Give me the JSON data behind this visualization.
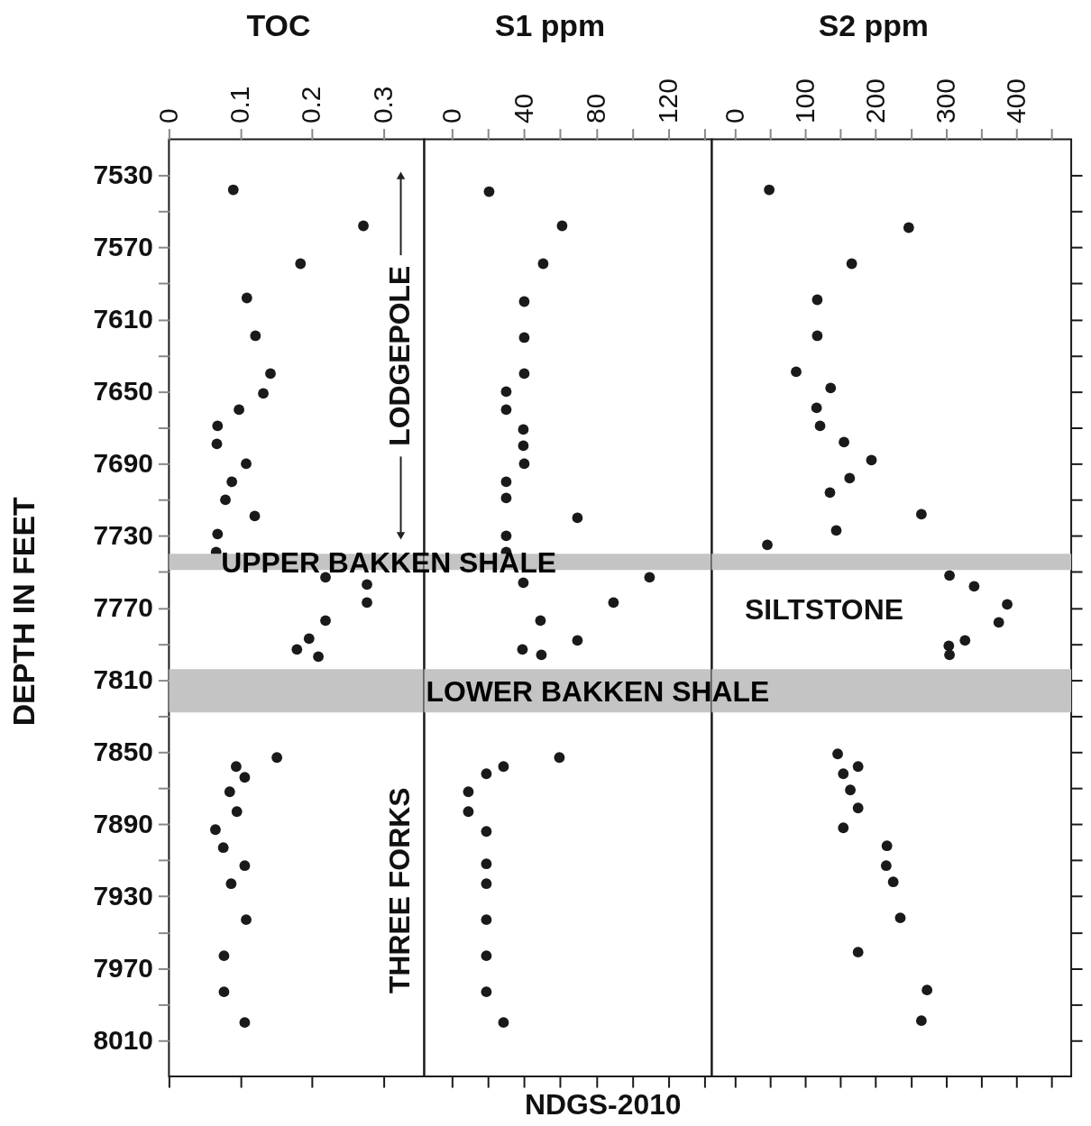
{
  "chart_data": [
    {
      "type": "scatter",
      "xlabel": "TOC",
      "ylabel": "DEPTH IN FEET",
      "marker": "circle",
      "grid": false,
      "legend": false,
      "xlim": [
        0,
        0.357
      ],
      "xticks": [
        0,
        0.1,
        0.2,
        0.3
      ],
      "ylim": [
        8030,
        7510
      ],
      "yticks": [
        7530,
        {
          "value": 7550,
          "label": null
        },
        7570,
        {
          "value": 7590,
          "label": null
        },
        7610,
        {
          "value": 7630,
          "label": null
        },
        7650,
        {
          "value": 7670,
          "label": null
        },
        7690,
        {
          "value": 7710,
          "label": null
        },
        7730,
        {
          "value": 7750,
          "label": null
        },
        7770,
        {
          "value": 7790,
          "label": null
        },
        7810,
        {
          "value": 7830,
          "label": null
        },
        7850,
        {
          "value": 7870,
          "label": null
        },
        7890,
        {
          "value": 7910,
          "label": null
        },
        7930,
        {
          "value": 7950,
          "label": null
        },
        7970,
        {
          "value": 7990,
          "label": null
        },
        8010
      ],
      "series": [
        {
          "color": "#1a1a1a",
          "x": [
            0.09,
            0.272,
            0.184,
            0.109,
            0.121,
            0.142,
            0.132,
            0.098,
            0.068,
            0.067,
            0.108,
            0.088,
            0.079,
            0.12,
            0.068,
            0.066,
            0.219,
            0.277,
            0.277,
            0.219,
            0.196,
            0.179,
            0.209,
            0.151,
            0.094,
            0.106,
            0.085,
            0.095,
            0.065,
            0.076,
            0.106,
            0.087,
            0.108,
            0.077,
            0.077,
            0.106
          ],
          "values": [
            7538,
            7558,
            7579,
            7598,
            7619,
            7640,
            7651,
            7660,
            7669,
            7679,
            7690,
            7700,
            7710,
            7719,
            7729,
            7739,
            7753,
            7757,
            7767,
            7777,
            7787,
            7793,
            7797,
            7853,
            7858,
            7864,
            7872,
            7883,
            7893,
            7903,
            7913,
            7923,
            7943,
            7963,
            7983,
            8000
          ]
        }
      ],
      "bands": [
        {
          "axis": "y",
          "from": 7740,
          "to": 7749,
          "label": "UPPER BAKKEN SHALE",
          "color": "#c4c4c4"
        },
        {
          "axis": "y",
          "from": 7804,
          "to": 7828,
          "color": "#c4c4c4"
        }
      ],
      "annotations": [
        "LODGEPOLE",
        "THREE FORKS"
      ]
    },
    {
      "type": "scatter",
      "xlabel": "S1 ppm",
      "marker": "circle",
      "grid": false,
      "legend": false,
      "tick_labels": "x",
      "xlim": [
        -15.5,
        144
      ],
      "xticks": [
        0,
        {
          "value": 20,
          "label": null
        },
        40,
        {
          "value": 60,
          "label": null
        },
        80,
        {
          "value": 100,
          "label": null
        },
        120,
        {
          "value": 140,
          "label": null
        }
      ],
      "ylim": [
        8030,
        7510
      ],
      "series": [
        {
          "color": "#1a1a1a",
          "x": [
            20.5,
            61,
            50.5,
            40,
            40,
            40,
            30,
            30,
            39.5,
            39.5,
            40,
            30,
            30,
            69.5,
            30,
            30,
            109.5,
            39.5,
            89.5,
            49,
            69.5,
            39,
            49.5,
            59.5,
            28.5,
            19,
            9,
            9,
            19,
            19,
            19,
            19,
            19,
            19,
            28.5
          ],
          "values": [
            7539,
            7558,
            7579,
            7600,
            7620,
            7640,
            7650,
            7660,
            7671,
            7680,
            7690,
            7700,
            7709,
            7720,
            7730,
            7739,
            7753,
            7756,
            7767,
            7777,
            7788,
            7793,
            7796,
            7853,
            7858,
            7862,
            7872,
            7883,
            7894,
            7912,
            7923,
            7943,
            7963,
            7983,
            8000
          ]
        }
      ],
      "bands": [
        {
          "axis": "y",
          "from": 7740,
          "to": 7749,
          "color": "#c4c4c4"
        },
        {
          "axis": "y",
          "from": 7804,
          "to": 7828,
          "label": "LOWER BAKKEN SHALE",
          "color": "#c4c4c4"
        }
      ],
      "annotations": [
        "NDGS-2010"
      ]
    },
    {
      "type": "scatter",
      "xlabel": "S2 ppm",
      "marker": "circle",
      "grid": false,
      "legend": false,
      "tick_labels": "x",
      "xlim": [
        -33,
        478
      ],
      "xticks": [
        0,
        {
          "value": 50,
          "label": null
        },
        100,
        {
          "value": 150,
          "label": null
        },
        200,
        {
          "value": 250,
          "label": null
        },
        300,
        {
          "value": 350,
          "label": null
        },
        400,
        {
          "value": 450,
          "label": null
        }
      ],
      "ylim": [
        8030,
        7510
      ],
      "series": [
        {
          "color": "#1a1a1a",
          "x": [
            48.7,
            247,
            166,
            117,
            117,
            87,
            136,
            116,
            121,
            155,
            194,
            163,
            135,
            265,
            144,
            46,
            305,
            340,
            387,
            375,
            327,
            304,
            305,
            146,
            175,
            154,
            164,
            175,
            154,
            216,
            215,
            225,
            235,
            175,
            273,
            265
          ],
          "values": [
            7538,
            7559,
            7579,
            7599,
            7619,
            7639,
            7648,
            7659,
            7669,
            7678,
            7688,
            7698,
            7706,
            7718,
            7727,
            7735,
            7752,
            7758,
            7768,
            7778,
            7788,
            7791,
            7796,
            7851,
            7858,
            7862,
            7871,
            7881,
            7892,
            7902,
            7913,
            7922,
            7942,
            7961,
            7982,
            7999
          ]
        }
      ],
      "bands": [
        {
          "axis": "y",
          "from": 7740,
          "to": 7749,
          "color": "#c4c4c4"
        },
        {
          "axis": "y",
          "from": 7804,
          "to": 7828,
          "color": "#c4c4c4"
        }
      ],
      "annotations": [
        "SILTSTONE"
      ]
    }
  ]
}
